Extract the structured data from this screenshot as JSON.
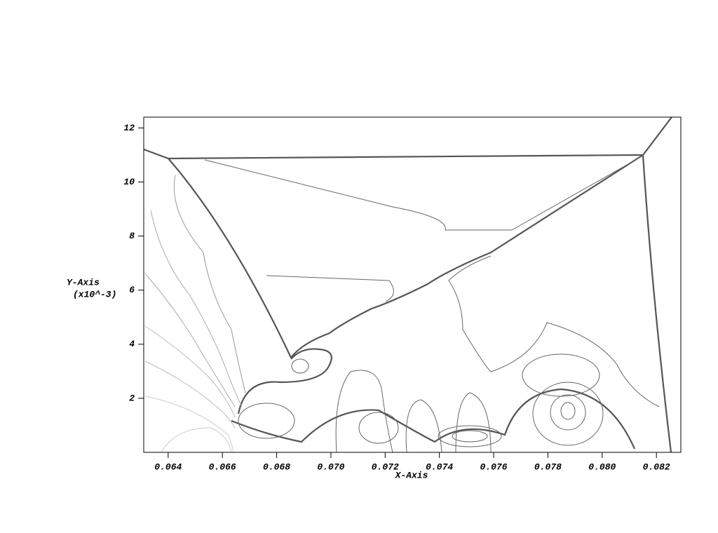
{
  "chart_data": {
    "type": "contour",
    "x_label": "X-Axis",
    "y_label": "Y-Axis",
    "y_label_scale": "(x10^-3)",
    "xlim": [
      0.0631,
      0.0829
    ],
    "xticks": [
      0.064,
      0.066,
      0.068,
      {
        "value": 0.07,
        "label": "0.070"
      },
      0.072,
      0.074,
      0.076,
      0.078,
      {
        "value": 0.08,
        "label": "0.080"
      },
      0.082
    ],
    "ylim": [
      0,
      12.4
    ],
    "yticks": [
      2,
      4,
      6,
      8,
      10,
      12
    ],
    "color": "#555555"
  }
}
